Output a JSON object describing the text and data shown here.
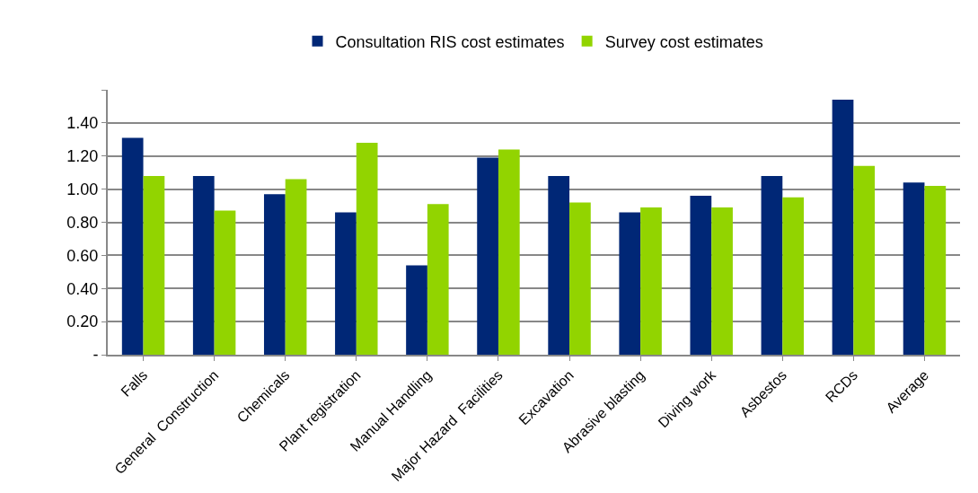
{
  "chart_data": {
    "type": "bar",
    "categories": [
      "Falls",
      "General  Construction",
      "Chemicals",
      "Plant registration",
      "Manual Handling",
      "Major Hazard  Facilities",
      "Excavation",
      "Abrasive blasting",
      "Diving work",
      "Asbestos",
      "RCDs",
      "Average"
    ],
    "series": [
      {
        "name": "Consultation RIS cost estimates",
        "color": "#002776",
        "values": [
          1.31,
          1.08,
          0.97,
          0.86,
          0.54,
          1.19,
          1.08,
          0.86,
          0.96,
          1.08,
          1.54,
          1.04
        ]
      },
      {
        "name": "Survey cost estimates",
        "color": "#92d400",
        "values": [
          1.08,
          0.87,
          1.06,
          1.28,
          0.91,
          1.24,
          0.92,
          0.89,
          0.89,
          0.95,
          1.14,
          1.02
        ]
      }
    ],
    "ylim": [
      0,
      1.6
    ],
    "yticks": [
      {
        "value": 0,
        "label": "-"
      },
      {
        "value": 0.2,
        "label": "0.20"
      },
      {
        "value": 0.4,
        "label": "0.40"
      },
      {
        "value": 0.6,
        "label": "0.60"
      },
      {
        "value": 0.8,
        "label": "0.80"
      },
      {
        "value": 1.0,
        "label": "1.00"
      },
      {
        "value": 1.2,
        "label": "1.20"
      },
      {
        "value": 1.4,
        "label": "1.40"
      },
      {
        "value": 1.6,
        "label": null
      }
    ],
    "grid": "y",
    "legend": "top"
  }
}
